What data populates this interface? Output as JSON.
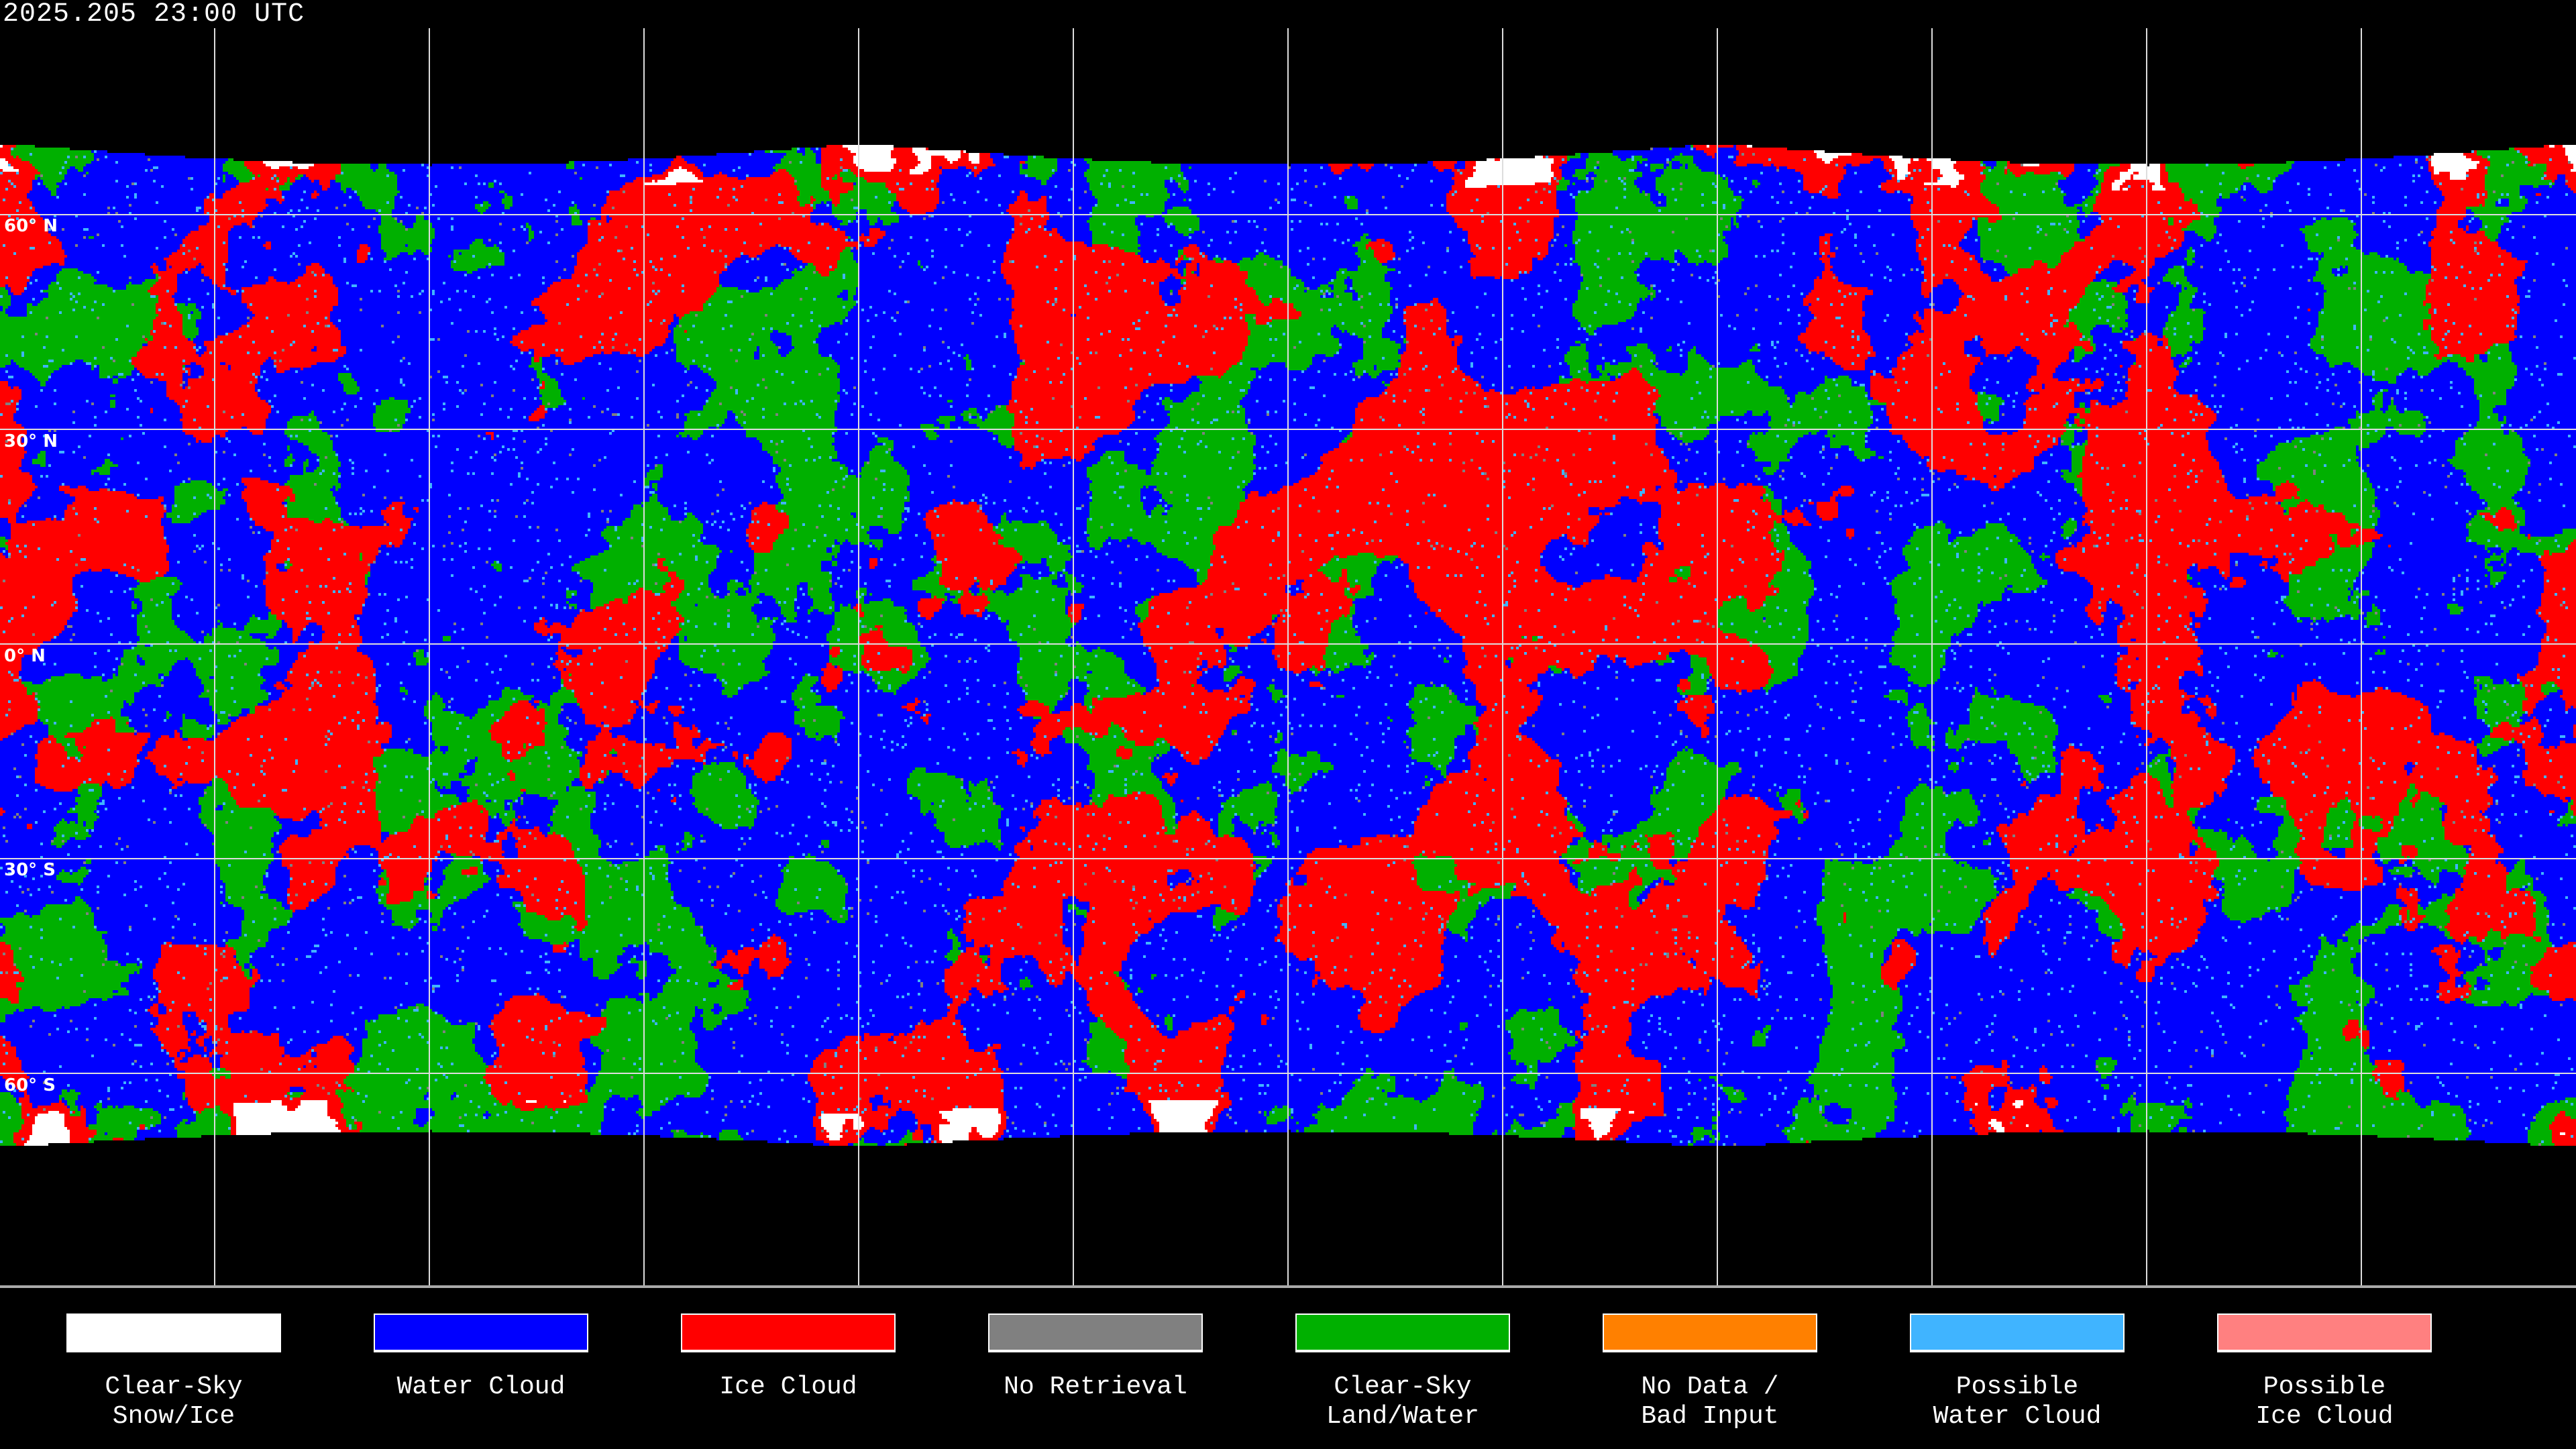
{
  "title": "2025.205 23:00 UTC",
  "latitude_labels": [
    "60° N",
    "30° N",
    "0° N",
    "30° S",
    "60° S"
  ],
  "legend": [
    {
      "line1": "Clear-Sky",
      "line2": "Snow/Ice",
      "color": "#ffffff"
    },
    {
      "line1": "Water Cloud",
      "line2": "",
      "color": "#0000ff"
    },
    {
      "line1": "Ice Cloud",
      "line2": "",
      "color": "#ff0000"
    },
    {
      "line1": "No Retrieval",
      "line2": "",
      "color": "#808080"
    },
    {
      "line1": "Clear-Sky",
      "line2": "Land/Water",
      "color": "#00b000"
    },
    {
      "line1": "No Data /",
      "line2": "Bad Input",
      "color": "#ff8000"
    },
    {
      "line1": "Possible",
      "line2": "Water Cloud",
      "color": "#40b4ff"
    },
    {
      "line1": "Possible",
      "line2": "Ice Cloud",
      "color": "#ff8080"
    }
  ]
}
